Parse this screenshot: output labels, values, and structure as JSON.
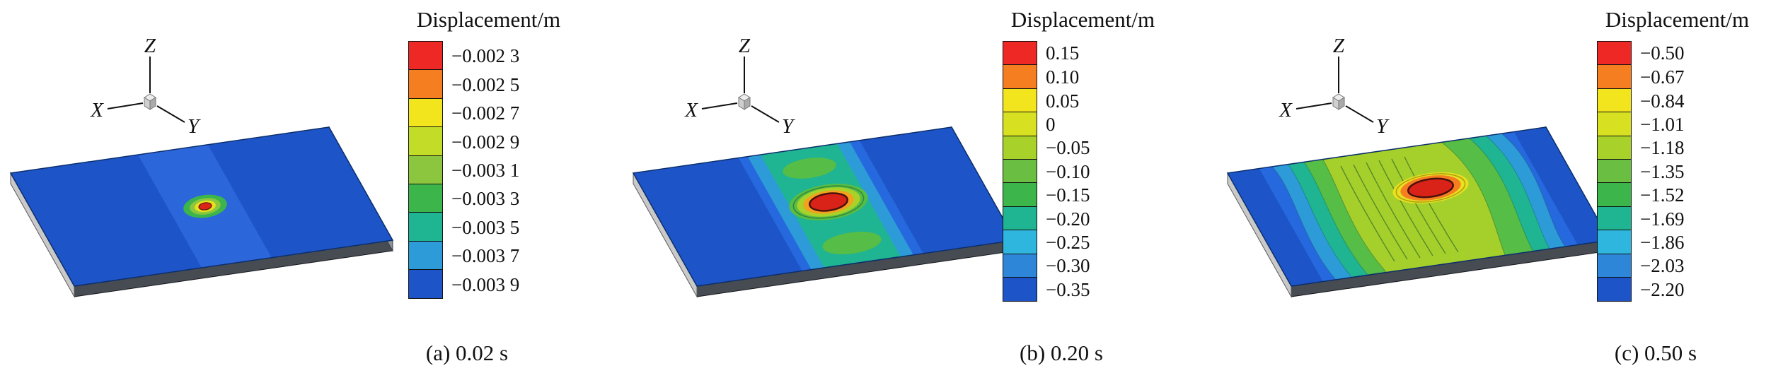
{
  "figure": {
    "kind": "finite-element displacement contour figure, three time steps",
    "panels": [
      {
        "caption": "(a) 0.02 s",
        "time_label": "0.02 s",
        "axis_labels": {
          "x": "X",
          "y": "Y",
          "z": "Z"
        },
        "legend": {
          "title": "Displacement/m",
          "entries": [
            {
              "label": "−0.002 3",
              "color": "#ee2824"
            },
            {
              "label": "−0.002 5",
              "color": "#f57e20"
            },
            {
              "label": "−0.002 7",
              "color": "#f3e51d"
            },
            {
              "label": "−0.002 9",
              "color": "#c3dc27"
            },
            {
              "label": "−0.003 1",
              "color": "#8cc63e"
            },
            {
              "label": "−0.003 3",
              "color": "#3cb54a"
            },
            {
              "label": "−0.003 5",
              "color": "#1fb492"
            },
            {
              "label": "−0.003 7",
              "color": "#2e9bd9"
            },
            {
              "label": "−0.003 9",
              "color": "#1d55c9"
            }
          ]
        }
      },
      {
        "caption": "(b) 0.20 s",
        "time_label": "0.20 s",
        "axis_labels": {
          "x": "X",
          "y": "Y",
          "z": "Z"
        },
        "legend": {
          "title": "Displacement/m",
          "entries": [
            {
              "label": "0.15",
              "color": "#ee2824"
            },
            {
              "label": "0.10",
              "color": "#f57e20"
            },
            {
              "label": "0.05",
              "color": "#f3e51d"
            },
            {
              "label": "0",
              "color": "#d7e021"
            },
            {
              "label": "−0.05",
              "color": "#a8d129"
            },
            {
              "label": "−0.10",
              "color": "#6abf43"
            },
            {
              "label": "−0.15",
              "color": "#3cb54a"
            },
            {
              "label": "−0.20",
              "color": "#1fb492"
            },
            {
              "label": "−0.25",
              "color": "#2fb6de"
            },
            {
              "label": "−0.30",
              "color": "#2e86d8"
            },
            {
              "label": "−0.35",
              "color": "#1d55c9"
            }
          ]
        }
      },
      {
        "caption": "(c) 0.50 s",
        "time_label": "0.50 s",
        "axis_labels": {
          "x": "X",
          "y": "Y",
          "z": "Z"
        },
        "legend": {
          "title": "Displacement/m",
          "entries": [
            {
              "label": "−0.50",
              "color": "#ee2824"
            },
            {
              "label": "−0.67",
              "color": "#f57e20"
            },
            {
              "label": "−0.84",
              "color": "#f3e51d"
            },
            {
              "label": "−1.01",
              "color": "#d7e021"
            },
            {
              "label": "−1.18",
              "color": "#a8d129"
            },
            {
              "label": "−1.35",
              "color": "#6abf43"
            },
            {
              "label": "−1.52",
              "color": "#3cb54a"
            },
            {
              "label": "−1.69",
              "color": "#1fb492"
            },
            {
              "label": "−1.86",
              "color": "#2fb6de"
            },
            {
              "label": "−2.03",
              "color": "#2e86d8"
            },
            {
              "label": "−2.20",
              "color": "#1d55c9"
            }
          ]
        }
      }
    ],
    "colors": {
      "plate_base": "#1d55c9",
      "plate_band_light": "#2b66da",
      "contour_red": "#da2318",
      "contour_green": "#56bd47",
      "contour_teal": "#1fb492",
      "contour_cyan": "#2e9bd9"
    }
  },
  "chart_data": [
    {
      "type": "heatmap",
      "variant": "3d-displacement-contour-plot",
      "title": "Displacement/m",
      "caption": "(a) 0.02 s",
      "time_s": 0.02,
      "legend_position": "right",
      "colorbar_values_m": [
        -0.0023,
        -0.0025,
        -0.0027,
        -0.0029,
        -0.0031,
        -0.0033,
        -0.0035,
        -0.0037,
        -0.0039
      ],
      "value_range_m": [
        -0.0039,
        -0.0023
      ],
      "axes_triad": [
        "X",
        "Y",
        "Z"
      ]
    },
    {
      "type": "heatmap",
      "variant": "3d-displacement-contour-plot",
      "title": "Displacement/m",
      "caption": "(b) 0.20 s",
      "time_s": 0.2,
      "legend_position": "right",
      "colorbar_values_m": [
        0.15,
        0.1,
        0.05,
        0,
        -0.05,
        -0.1,
        -0.15,
        -0.2,
        -0.25,
        -0.3,
        -0.35
      ],
      "value_range_m": [
        -0.35,
        0.15
      ],
      "axes_triad": [
        "X",
        "Y",
        "Z"
      ]
    },
    {
      "type": "heatmap",
      "variant": "3d-displacement-contour-plot",
      "title": "Displacement/m",
      "caption": "(c) 0.50 s",
      "time_s": 0.5,
      "legend_position": "right",
      "colorbar_values_m": [
        -0.5,
        -0.67,
        -0.84,
        -1.01,
        -1.18,
        -1.35,
        -1.52,
        -1.69,
        -1.86,
        -2.03,
        -2.2
      ],
      "value_range_m": [
        -2.2,
        -0.5
      ],
      "axes_triad": [
        "X",
        "Y",
        "Z"
      ]
    }
  ]
}
